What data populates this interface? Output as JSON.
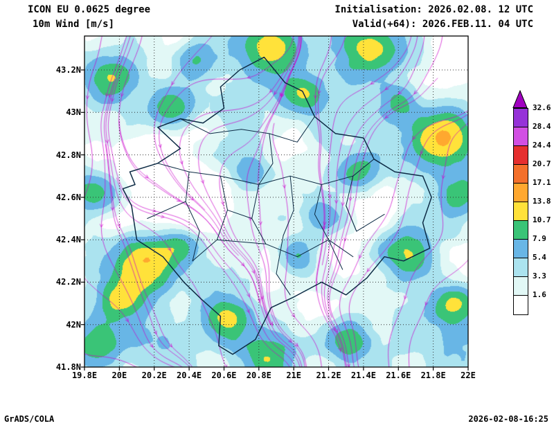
{
  "header": {
    "model": "ICON EU 0.0625 degree",
    "field": "10m Wind [m/s]",
    "initialisation": "Initialisation: 2026.02.08. 12 UTC",
    "valid": "Valid(+64): 2026.FEB.11. 04 UTC"
  },
  "footer": {
    "left": "GrADS/COLA",
    "right": "2026-02-08-16:25"
  },
  "axes": {
    "y_ticks": [
      {
        "label": "43.2N",
        "lat": 43.2
      },
      {
        "label": "43N",
        "lat": 43.0
      },
      {
        "label": "42.8N",
        "lat": 42.8
      },
      {
        "label": "42.6N",
        "lat": 42.6
      },
      {
        "label": "42.4N",
        "lat": 42.4
      },
      {
        "label": "42.2N",
        "lat": 42.2
      },
      {
        "label": "42N",
        "lat": 42.0
      },
      {
        "label": "41.8N",
        "lat": 41.8
      }
    ],
    "x_ticks": [
      {
        "label": "19.8E",
        "lon": 19.8
      },
      {
        "label": "20E",
        "lon": 20.0
      },
      {
        "label": "20.2E",
        "lon": 20.2
      },
      {
        "label": "20.4E",
        "lon": 20.4
      },
      {
        "label": "20.6E",
        "lon": 20.6
      },
      {
        "label": "20.8E",
        "lon": 20.8
      },
      {
        "label": "21E",
        "lon": 21.0
      },
      {
        "label": "21.2E",
        "lon": 21.2
      },
      {
        "label": "21.4E",
        "lon": 21.4
      },
      {
        "label": "21.6E",
        "lon": 21.6
      },
      {
        "label": "21.8E",
        "lon": 21.8
      },
      {
        "label": "22E",
        "lon": 22.0
      }
    ]
  },
  "colorbar": {
    "tick_labels_top_to_bottom": [
      "32.6",
      "28.4",
      "24.4",
      "20.7",
      "17.1",
      "13.8",
      "10.7",
      "7.9",
      "5.4",
      "3.3",
      "1.6"
    ]
  },
  "chart_data": {
    "type": "heatmap",
    "title": "ICON EU 0.0625 degree  10m Wind [m/s]",
    "variable": "10m wind speed",
    "units": "m/s",
    "region": "Kosovo and surroundings",
    "lon_range": [
      19.8,
      22.0
    ],
    "lat_range": [
      41.8,
      43.36
    ],
    "grid_interval_deg": 0.2,
    "shading_levels": [
      1.6,
      3.3,
      5.4,
      7.9,
      10.7,
      13.8,
      17.1,
      20.7,
      24.4,
      28.4,
      32.6
    ],
    "shading_colors": [
      "#ffffff",
      "#e2f8f6",
      "#abe3ef",
      "#68b6e6",
      "#3ac477",
      "#ffe23a",
      "#ffa82f",
      "#f4702b",
      "#e62f2f",
      "#d24fe3",
      "#9632d8",
      "#a000c0"
    ],
    "overlays": {
      "streamlines_color": "#cc00cc",
      "admin_border_color": "#0d2b45",
      "grid_style": "dotted lat-lon grid every 0.2 degree"
    },
    "approx_wind_maxima": [
      {
        "lon": 19.95,
        "lat": 43.17,
        "amp": 9,
        "r": 0.1
      },
      {
        "lon": 20.3,
        "lat": 43.03,
        "amp": 8,
        "r": 0.09
      },
      {
        "lon": 20.88,
        "lat": 43.3,
        "amp": 11,
        "r": 0.13
      },
      {
        "lon": 21.06,
        "lat": 43.08,
        "amp": 7,
        "r": 0.08
      },
      {
        "lon": 21.45,
        "lat": 43.3,
        "amp": 8,
        "r": 0.1
      },
      {
        "lon": 21.86,
        "lat": 42.88,
        "amp": 12,
        "r": 0.13
      },
      {
        "lon": 21.95,
        "lat": 42.62,
        "amp": 8,
        "r": 0.1
      },
      {
        "lon": 21.66,
        "lat": 42.33,
        "amp": 10,
        "r": 0.11
      },
      {
        "lon": 21.92,
        "lat": 42.1,
        "amp": 9,
        "r": 0.1
      },
      {
        "lon": 21.3,
        "lat": 41.93,
        "amp": 8,
        "r": 0.1
      },
      {
        "lon": 20.86,
        "lat": 41.84,
        "amp": 10,
        "r": 0.12
      },
      {
        "lon": 20.62,
        "lat": 42.02,
        "amp": 9,
        "r": 0.1
      },
      {
        "lon": 20.15,
        "lat": 42.28,
        "amp": 11,
        "r": 0.12
      },
      {
        "lon": 20.02,
        "lat": 42.12,
        "amp": 8,
        "r": 0.09
      },
      {
        "lon": 19.86,
        "lat": 42.62,
        "amp": 7,
        "r": 0.09
      },
      {
        "lon": 20.35,
        "lat": 42.38,
        "amp": 6,
        "r": 0.08
      },
      {
        "lon": 21.02,
        "lat": 42.33,
        "amp": 6,
        "r": 0.08
      },
      {
        "lon": 21.37,
        "lat": 42.72,
        "amp": 6,
        "r": 0.08
      },
      {
        "lon": 20.75,
        "lat": 42.72,
        "amp": 5,
        "r": 0.08
      },
      {
        "lon": 21.18,
        "lat": 42.52,
        "amp": 5,
        "r": 0.08
      },
      {
        "lon": 19.88,
        "lat": 41.92,
        "amp": 7,
        "r": 0.1
      },
      {
        "lon": 20.45,
        "lat": 43.25,
        "amp": 6,
        "r": 0.09
      },
      {
        "lon": 21.6,
        "lat": 43.05,
        "amp": 6,
        "r": 0.08
      }
    ],
    "approx_calm_minima": [
      {
        "lon": 20.45,
        "lat": 42.58,
        "amp": -4.5,
        "r": 0.16
      },
      {
        "lon": 20.18,
        "lat": 42.8,
        "amp": -3.5,
        "r": 0.12
      },
      {
        "lon": 21.72,
        "lat": 43.12,
        "amp": -4,
        "r": 0.12
      },
      {
        "lon": 20.95,
        "lat": 42.9,
        "amp": -3,
        "r": 0.1
      },
      {
        "lon": 21.5,
        "lat": 42.55,
        "amp": -3,
        "r": 0.1
      },
      {
        "lon": 22.0,
        "lat": 43.3,
        "amp": -4,
        "r": 0.14
      }
    ]
  }
}
